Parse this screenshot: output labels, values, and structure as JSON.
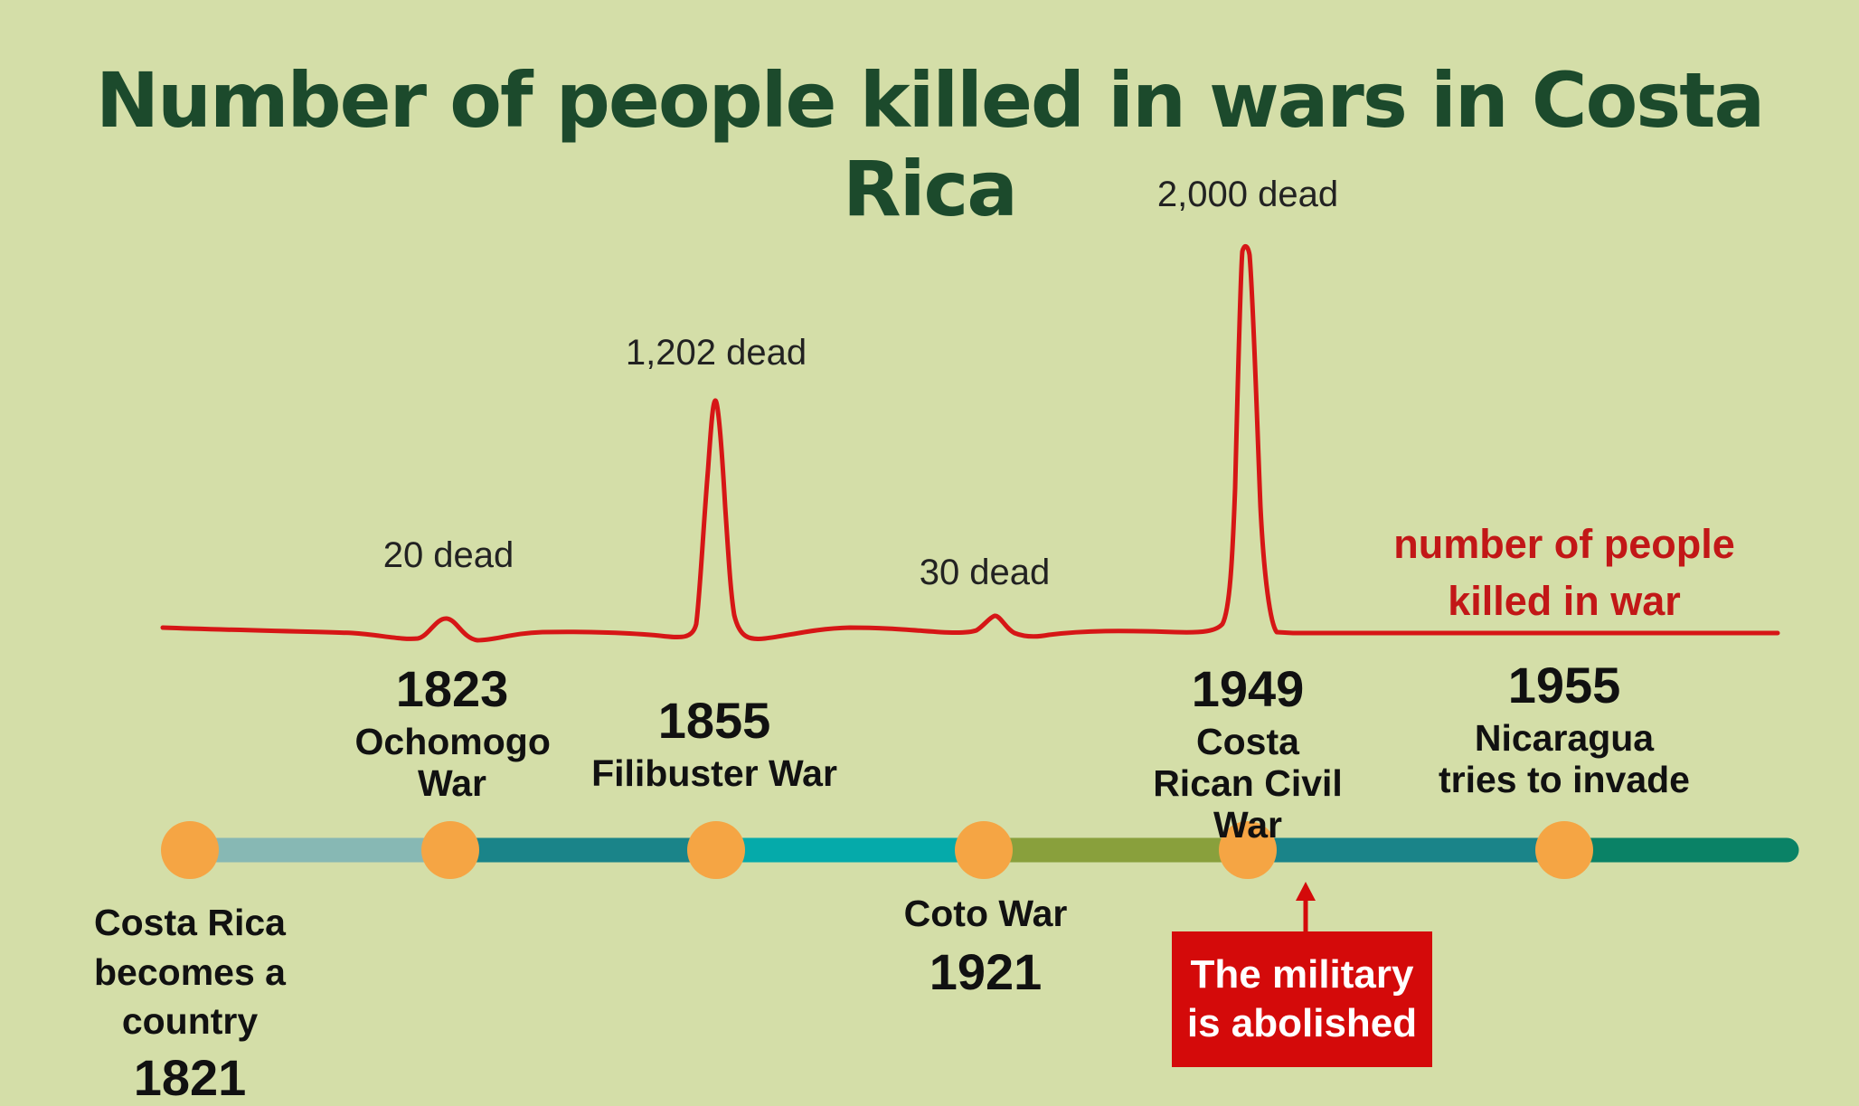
{
  "title": "Number of people killed in wars in Costa Rica",
  "legend": "number of people killed in war",
  "callout": {
    "label": "The military is abolished",
    "color": "#d40a0a"
  },
  "colors": {
    "background": "#d4dea8",
    "title": "#1c4a2c",
    "death_line": "#d61616",
    "milestone_dot": "#f5a544"
  },
  "death_counts": [
    {
      "label": "20 dead",
      "value": 20
    },
    {
      "label": "1,202 dead",
      "value": 1202
    },
    {
      "label": "30 dead",
      "value": 30
    },
    {
      "label": "2,000 dead",
      "value": 2000
    }
  ],
  "events": [
    {
      "year": "1821",
      "label": "Costa Rica becomes a country"
    },
    {
      "year": "1823",
      "label": "Ochomogo War"
    },
    {
      "year": "1855",
      "label": "Filibuster War"
    },
    {
      "year": "1921",
      "label": "Coto War"
    },
    {
      "year": "1949",
      "label": "Costa Rican Civil War"
    },
    {
      "year": "1955",
      "label": "Nicaragua tries to invade"
    }
  ],
  "timeline_segments": [
    {
      "color": "#87b8b4"
    },
    {
      "color": "#1a8489"
    },
    {
      "color": "#05aaaa"
    },
    {
      "color": "#89a03c"
    },
    {
      "color": "#1a8489"
    },
    {
      "color": "#0a8266"
    }
  ]
}
